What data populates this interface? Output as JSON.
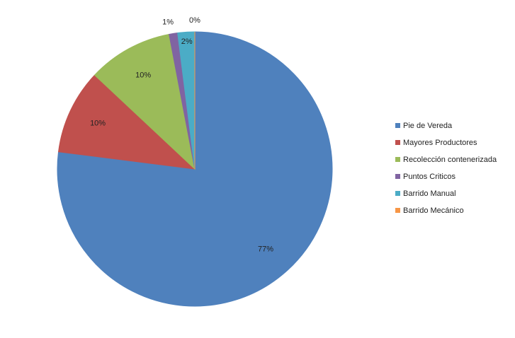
{
  "chart_data": {
    "type": "pie",
    "categories": [
      "Pie de Vereda",
      "Mayores Productores",
      "Recolección contenerizada",
      "Puntos Criticos",
      "Barrido Manual",
      "Barrido Mecánico"
    ],
    "values": [
      77,
      10,
      10,
      1,
      2,
      0
    ],
    "value_labels": [
      "77%",
      "10%",
      "10%",
      "1%",
      "2%",
      "0%"
    ],
    "colors": [
      "#4f81bd",
      "#c0504d",
      "#9bbb59",
      "#8064a2",
      "#4bacc6",
      "#f79646"
    ],
    "legend": "right"
  }
}
